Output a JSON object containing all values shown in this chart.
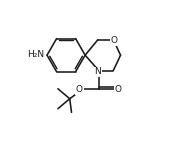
{
  "bg_color": "#ffffff",
  "line_color": "#1a1a1a",
  "line_width": 1.15,
  "font_size": 6.5,
  "figsize": [
    1.83,
    1.43
  ],
  "dpi": 100,
  "xlim": [
    0,
    10
  ],
  "ylim": [
    0,
    7.8
  ]
}
